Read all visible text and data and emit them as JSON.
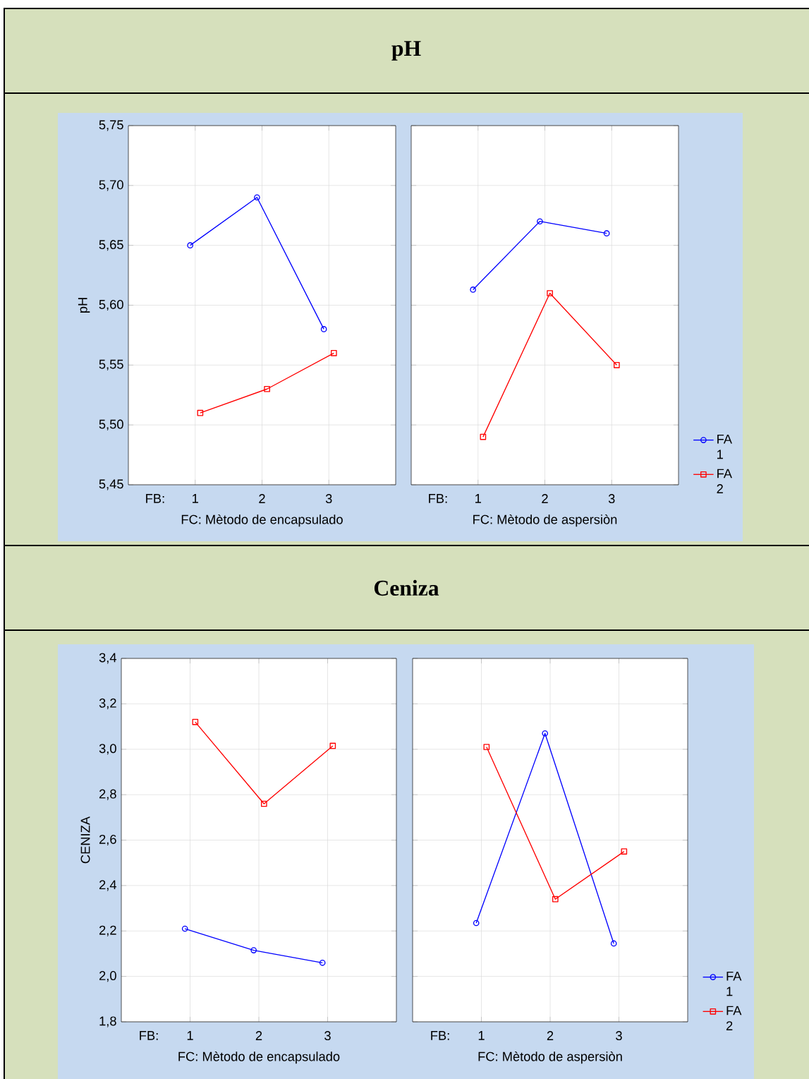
{
  "chart_data": [
    {
      "type": "line",
      "title": "pH",
      "ylabel": "pH",
      "xlabel": "FC: Mètodo de encapsulado",
      "annotations": [
        "FB:"
      ],
      "categories": [
        "1",
        "2",
        "3"
      ],
      "grid": true,
      "ylim": [
        5.45,
        5.75
      ],
      "yticks": [
        {
          "value": 5.45,
          "label": "5,45"
        },
        {
          "value": 5.5,
          "label": "5,50"
        },
        {
          "value": 5.55,
          "label": "5,55"
        },
        {
          "value": 5.6,
          "label": "5,60"
        },
        {
          "value": 5.65,
          "label": "5,65"
        },
        {
          "value": 5.7,
          "label": "5,70"
        },
        {
          "value": 5.75,
          "label": "5,75"
        }
      ],
      "series": [
        {
          "color": "#0000ff",
          "marker": "circle",
          "values": [
            5.65,
            5.69,
            5.58
          ]
        },
        {
          "color": "#ff0000",
          "marker": "square",
          "values": [
            5.51,
            5.53,
            5.56
          ]
        }
      ]
    },
    {
      "type": "line",
      "xlabel": "FC: Mètodo de aspersiòn",
      "annotations": [
        "FB:"
      ],
      "categories": [
        "1",
        "2",
        "3"
      ],
      "grid": true,
      "tick_labels": "x",
      "legend": "bottom right",
      "ylim": [
        5.45,
        5.75
      ],
      "yticks": [
        5.45,
        5.5,
        5.55,
        5.6,
        5.65,
        5.7,
        5.75
      ],
      "series": [
        {
          "name": "FA 1",
          "color": "#0000ff",
          "marker": "circle",
          "values": [
            5.613,
            5.67,
            5.66
          ]
        },
        {
          "name": "FA 2",
          "color": "#ff0000",
          "marker": "square",
          "values": [
            5.49,
            5.61,
            5.55
          ]
        }
      ]
    },
    {
      "type": "line",
      "title": "Ceniza",
      "ylabel": "CENIZA",
      "xlabel": "FC: Mètodo de encapsulado",
      "annotations": [
        "FB:"
      ],
      "categories": [
        "1",
        "2",
        "3"
      ],
      "grid": true,
      "ylim": [
        1.8,
        3.4
      ],
      "yticks": [
        {
          "value": 1.8,
          "label": "1,8"
        },
        {
          "value": 2.0,
          "label": "2,0"
        },
        {
          "value": 2.2,
          "label": "2,2"
        },
        {
          "value": 2.4,
          "label": "2,4"
        },
        {
          "value": 2.6,
          "label": "2,6"
        },
        {
          "value": 2.8,
          "label": "2,8"
        },
        {
          "value": 3.0,
          "label": "3,0"
        },
        {
          "value": 3.2,
          "label": "3,2"
        },
        {
          "value": 3.4,
          "label": "3,4"
        }
      ],
      "series": [
        {
          "color": "#0000ff",
          "marker": "circle",
          "values": [
            2.21,
            2.115,
            2.06
          ]
        },
        {
          "color": "#ff0000",
          "marker": "square",
          "values": [
            3.12,
            2.76,
            3.015
          ]
        }
      ]
    },
    {
      "type": "line",
      "xlabel": "FC: Mètodo de aspersiòn",
      "annotations": [
        "FB:"
      ],
      "categories": [
        "1",
        "2",
        "3"
      ],
      "grid": true,
      "tick_labels": "x",
      "legend": "bottom right",
      "ylim": [
        1.8,
        3.4
      ],
      "yticks": [
        1.8,
        2.0,
        2.2,
        2.4,
        2.6,
        2.8,
        3.0,
        3.2,
        3.4
      ],
      "series": [
        {
          "name": "FA 1",
          "color": "#0000ff",
          "marker": "circle",
          "values": [
            2.235,
            3.07,
            2.145
          ]
        },
        {
          "name": "FA 2",
          "color": "#ff0000",
          "marker": "square",
          "values": [
            3.01,
            2.34,
            2.55
          ]
        }
      ]
    }
  ]
}
